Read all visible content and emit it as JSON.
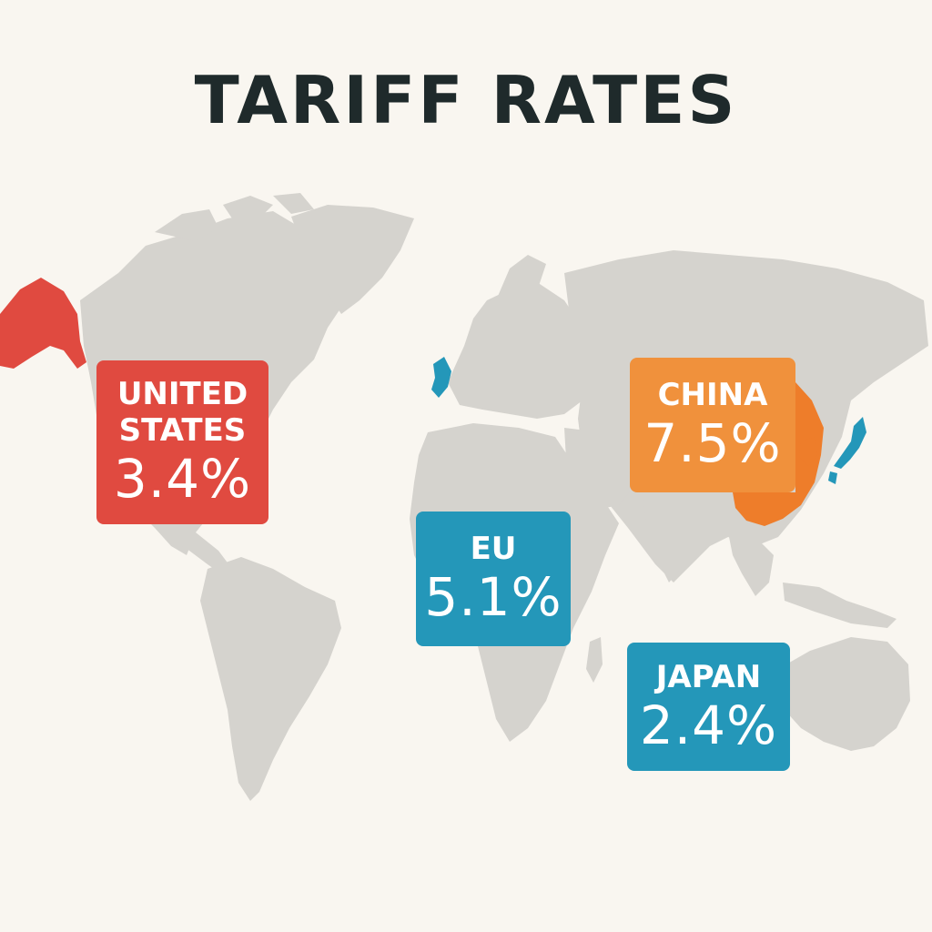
{
  "title": "TARIFF RATES",
  "regions": {
    "united_states": {
      "name": "UNITED\nSTATES",
      "rate": "3.4%",
      "color": "#e04a40"
    },
    "china": {
      "name": "CHINA",
      "rate": "7.5%",
      "color": "#f0913c"
    },
    "eu": {
      "name": "EU",
      "rate": "5.1%",
      "color": "#2497b9"
    },
    "japan": {
      "name": "JAPAN",
      "rate": "2.4%",
      "color": "#2497b9"
    }
  },
  "colors": {
    "background": "#f9f6f0",
    "land": "#d5d3ce",
    "title": "#1f2a2b",
    "china_territory": "#ee7d2a"
  }
}
